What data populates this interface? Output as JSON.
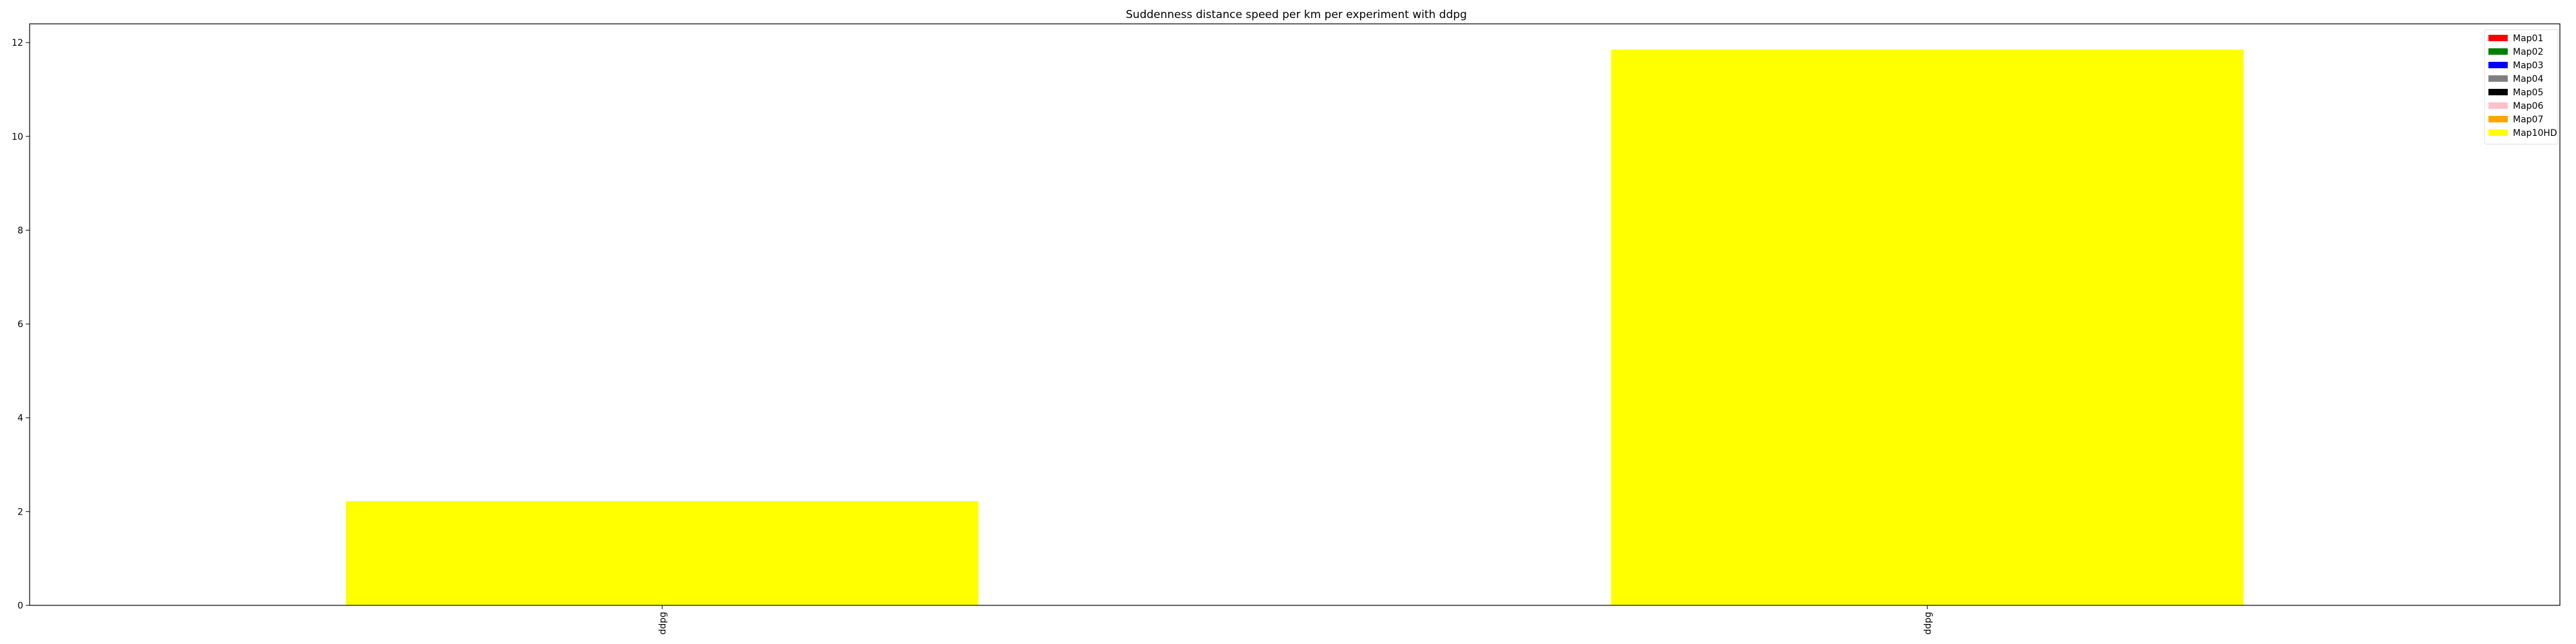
{
  "chart_data": {
    "type": "bar",
    "title": "Suddenness distance speed per km per experiment with ddpg",
    "xlabel": "",
    "ylabel": "",
    "categories": [
      "ddpg",
      "ddpg"
    ],
    "series": [
      {
        "name": "Map01",
        "color": "#ff0000",
        "values": [
          0,
          0
        ]
      },
      {
        "name": "Map02",
        "color": "#008000",
        "values": [
          0,
          0
        ]
      },
      {
        "name": "Map03",
        "color": "#0000ff",
        "values": [
          0,
          0
        ]
      },
      {
        "name": "Map04",
        "color": "#808080",
        "values": [
          0,
          0
        ]
      },
      {
        "name": "Map05",
        "color": "#000000",
        "values": [
          0,
          0
        ]
      },
      {
        "name": "Map06",
        "color": "#ffc0cb",
        "values": [
          0,
          0
        ]
      },
      {
        "name": "Map07",
        "color": "#ffa500",
        "values": [
          0,
          0
        ]
      },
      {
        "name": "Map10HD",
        "color": "#ffff00",
        "values": [
          2.22,
          11.85
        ]
      }
    ],
    "stacked": true,
    "ylim": [
      0,
      12.4
    ],
    "yticks": [
      0,
      2,
      4,
      6,
      8,
      10,
      12
    ],
    "grid": false,
    "legend_position": "top-right"
  }
}
